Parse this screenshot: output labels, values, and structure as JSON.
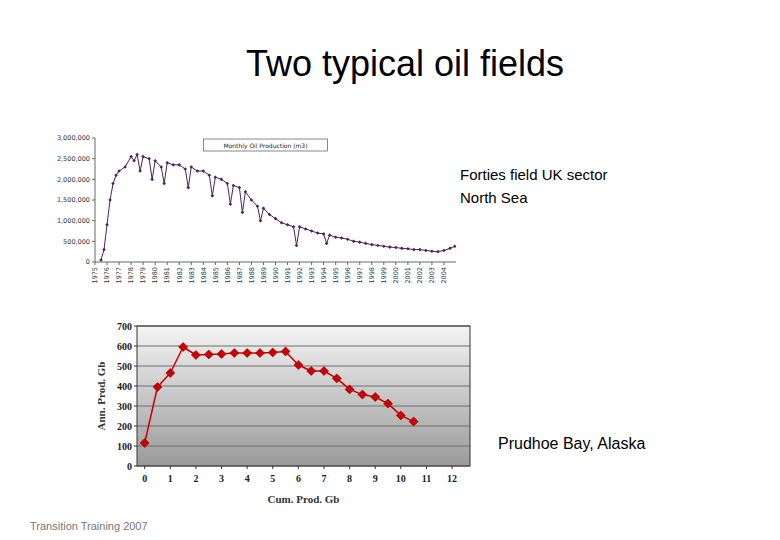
{
  "title": "Two typical oil fields",
  "footer": "Transition Training 2007",
  "chart_data": [
    {
      "type": "line",
      "title": "Monthly Oil Production (m3)",
      "annotations": [
        "Forties field UK sector",
        "North Sea"
      ],
      "x": [
        1975.5,
        1975.75,
        1976,
        1976.25,
        1976.5,
        1976.75,
        1977,
        1977.5,
        1978,
        1978.25,
        1978.5,
        1978.75,
        1979,
        1979.5,
        1979.75,
        1980,
        1980.5,
        1980.75,
        1981,
        1981.5,
        1982,
        1982.5,
        1982.75,
        1983,
        1983.5,
        1984,
        1984.5,
        1984.75,
        1985,
        1985.5,
        1986,
        1986.25,
        1986.5,
        1987,
        1987.25,
        1987.5,
        1988,
        1988.5,
        1988.75,
        1989,
        1989.5,
        1990,
        1990.5,
        1991,
        1991.5,
        1991.75,
        1992,
        1992.5,
        1993,
        1993.5,
        1994,
        1994.25,
        1994.5,
        1995,
        1995.5,
        1996,
        1996.5,
        1997,
        1997.5,
        1998,
        1998.5,
        1999,
        1999.5,
        2000,
        2000.5,
        2001,
        2001.5,
        2002,
        2002.5,
        2003,
        2003.5,
        2004,
        2004.5,
        2004.9
      ],
      "values": [
        50000,
        300000,
        900000,
        1500000,
        1900000,
        2100000,
        2200000,
        2300000,
        2550000,
        2450000,
        2600000,
        2200000,
        2550000,
        2500000,
        2000000,
        2450000,
        2300000,
        1900000,
        2400000,
        2350000,
        2350000,
        2250000,
        1800000,
        2300000,
        2200000,
        2200000,
        2100000,
        1600000,
        2050000,
        2000000,
        1900000,
        1400000,
        1850000,
        1800000,
        1200000,
        1700000,
        1500000,
        1350000,
        1000000,
        1300000,
        1150000,
        1050000,
        950000,
        900000,
        850000,
        400000,
        850000,
        800000,
        750000,
        700000,
        680000,
        450000,
        650000,
        600000,
        580000,
        550000,
        500000,
        480000,
        450000,
        420000,
        400000,
        380000,
        360000,
        350000,
        330000,
        320000,
        300000,
        300000,
        280000,
        260000,
        250000,
        280000,
        330000,
        380000
      ],
      "color": "#4b2360",
      "marker": "diamond",
      "line_style": "solid",
      "grid": false,
      "xlim": [
        1975,
        2005
      ],
      "xticks": [
        1975,
        1976,
        1977,
        1978,
        1979,
        1980,
        1981,
        1982,
        1983,
        1984,
        1985,
        1986,
        1987,
        1988,
        1989,
        1990,
        1991,
        1992,
        1993,
        1994,
        1995,
        1996,
        1997,
        1998,
        1999,
        2000,
        2001,
        2002,
        2003,
        2004
      ],
      "ylim": [
        0,
        3000000
      ],
      "yticks": [
        0,
        {
          "value": 500000,
          "label": "500,000"
        },
        {
          "value": 1000000,
          "label": "1,000,000"
        },
        {
          "value": 1500000,
          "label": "1,500,000"
        },
        {
          "value": 2000000,
          "label": "2,000,000"
        },
        {
          "value": 2500000,
          "label": "2,500,000"
        },
        {
          "value": 3000000,
          "label": "3,000,000"
        }
      ]
    },
    {
      "type": "line",
      "x_label": "Cum. Prod. Gb",
      "y_label": "Ann. Prod. Gb",
      "annotations": [
        "Prudhoe Bay, Alaska"
      ],
      "x": [
        0,
        0.5,
        1,
        1.5,
        2,
        2.5,
        3,
        3.5,
        4,
        4.5,
        5,
        5.5,
        6,
        6.5,
        7,
        7.5,
        8,
        8.5,
        9,
        9.5,
        10,
        10.5
      ],
      "values": [
        115,
        395,
        465,
        595,
        555,
        558,
        560,
        565,
        565,
        565,
        568,
        573,
        505,
        475,
        475,
        438,
        383,
        357,
        345,
        312,
        253,
        222
      ],
      "color": "#cc0000",
      "marker": "diamond",
      "line_style": "solid",
      "grid": true,
      "xlim": [
        -0.3,
        12.7
      ],
      "xticks": [
        0,
        1,
        2,
        3,
        4,
        5,
        6,
        7,
        8,
        9,
        10,
        11,
        12
      ],
      "ylim": [
        0,
        700
      ],
      "yticks": [
        0,
        100,
        200,
        300,
        400,
        500,
        600,
        700
      ]
    }
  ]
}
